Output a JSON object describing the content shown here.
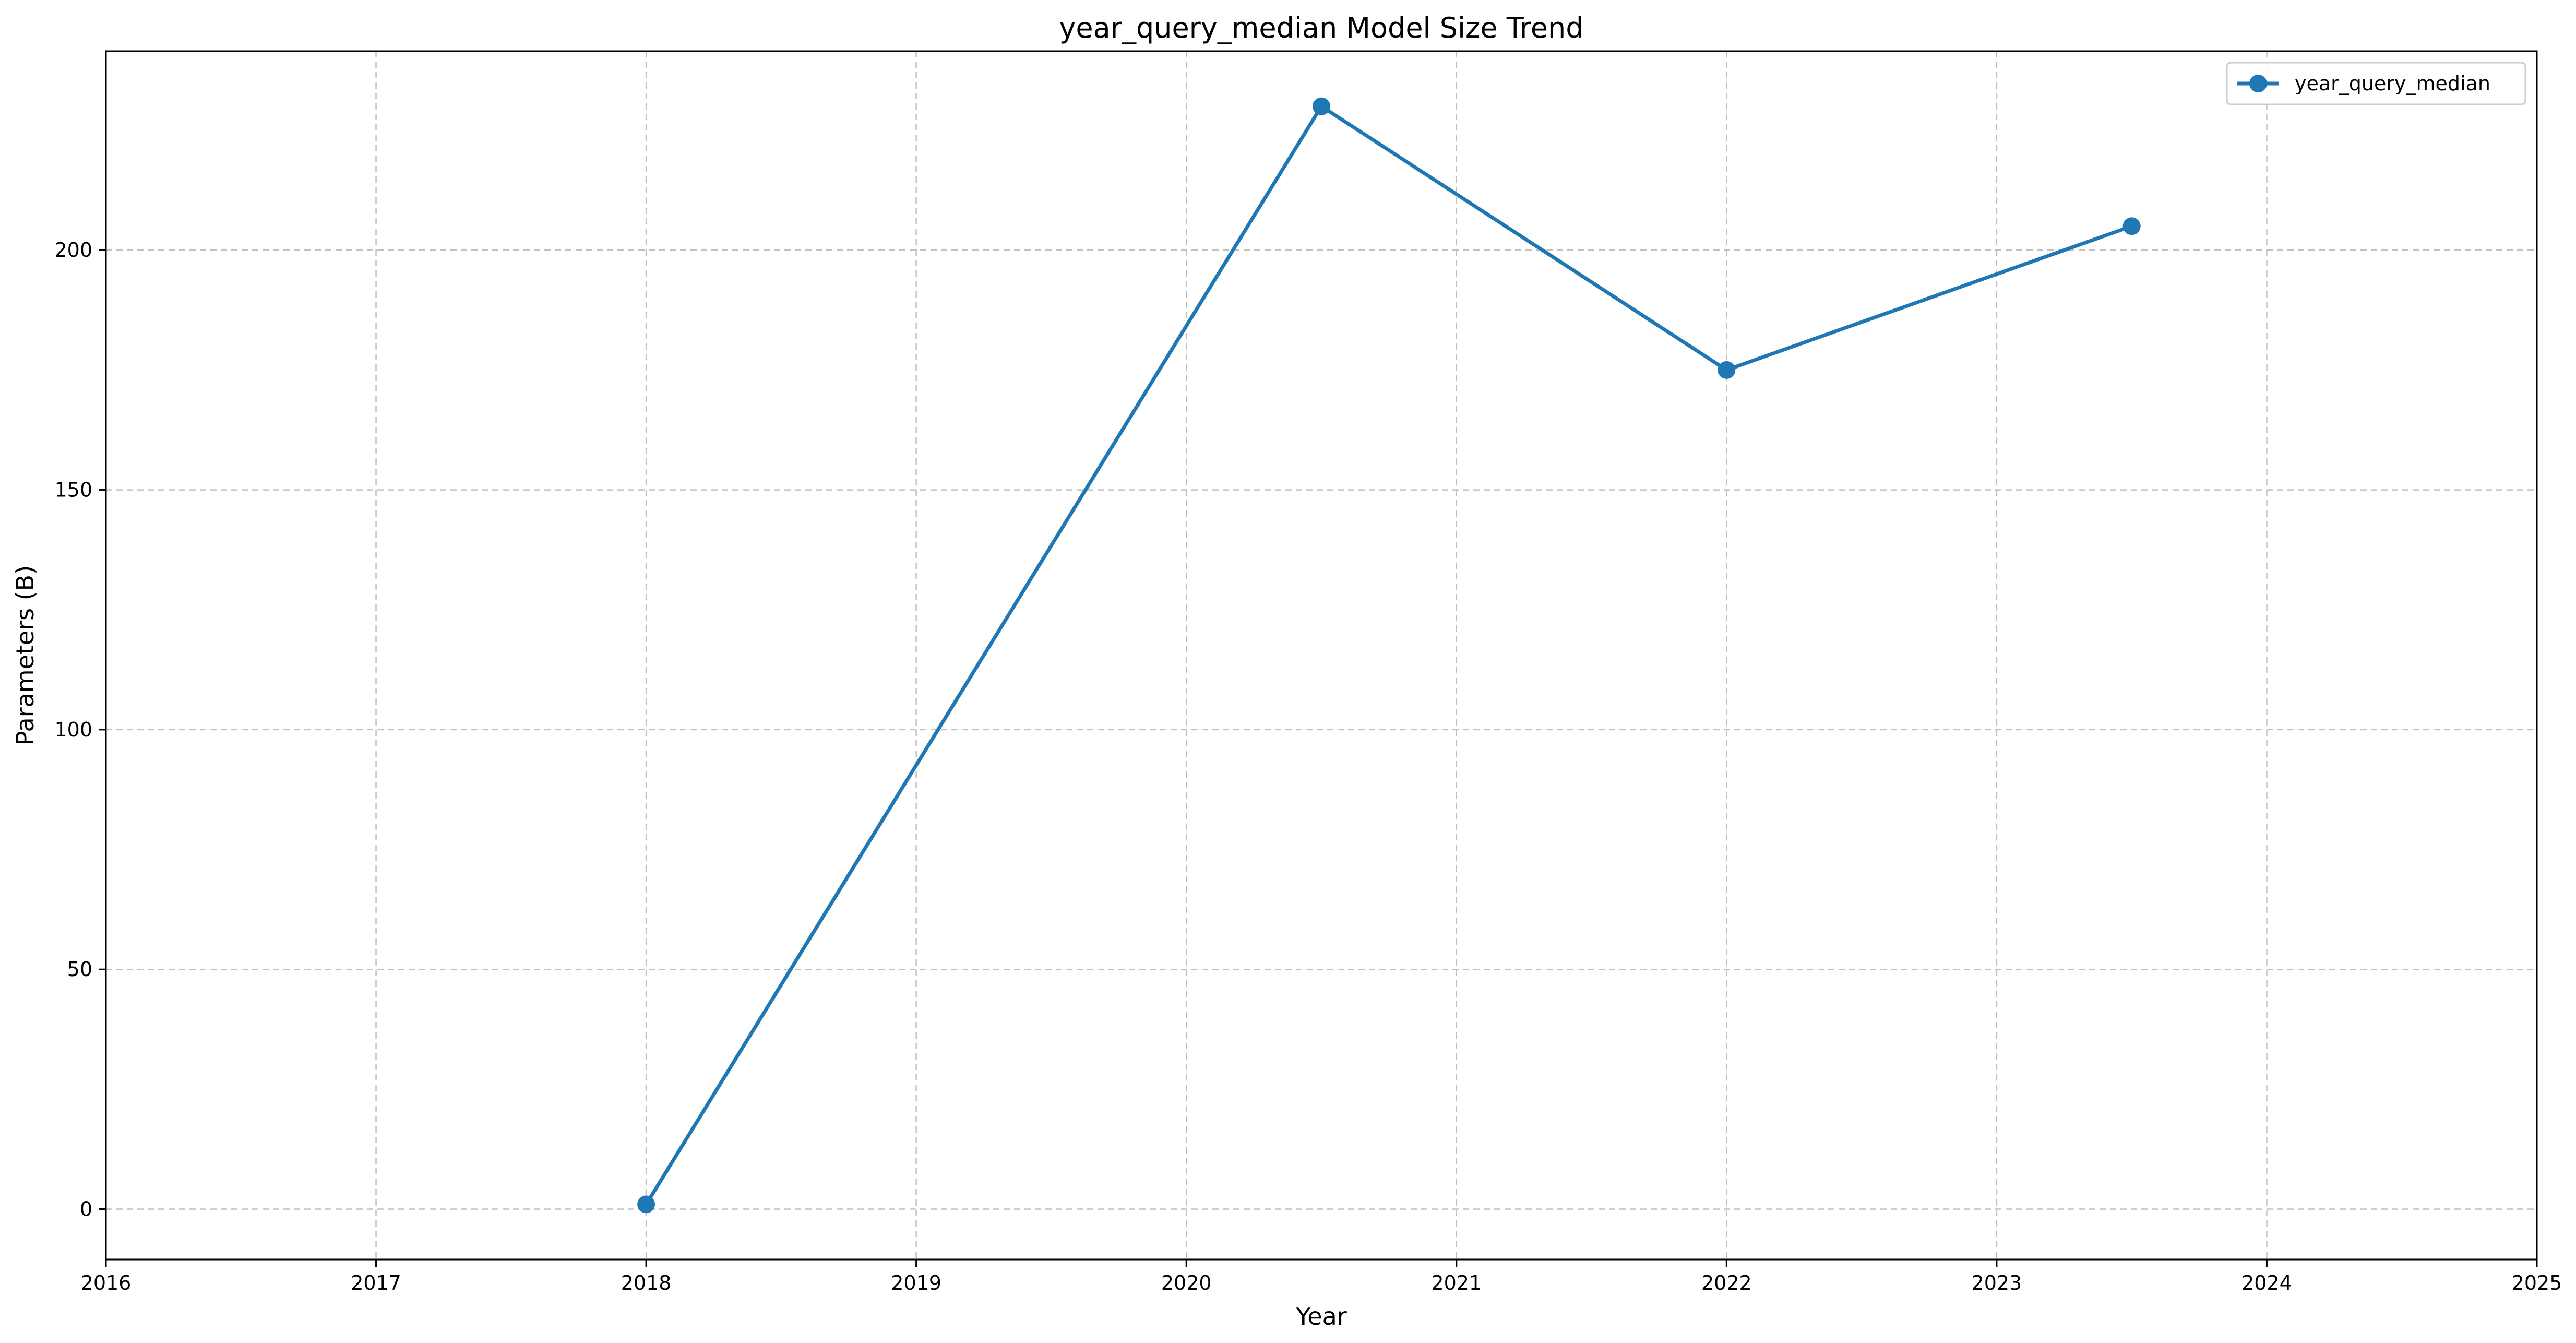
{
  "chart_data": {
    "type": "line",
    "title": "year_query_median Model Size Trend",
    "xlabel": "Year",
    "ylabel": "Parameters (B)",
    "xlim": [
      2016,
      2025
    ],
    "ylim": [
      -10.5,
      241.5
    ],
    "x_ticks": [
      2016,
      2017,
      2018,
      2019,
      2020,
      2021,
      2022,
      2023,
      2024,
      2025
    ],
    "y_ticks": [
      0,
      50,
      100,
      150,
      200
    ],
    "grid": true,
    "legend_position": "top-right",
    "series": [
      {
        "name": "year_query_median",
        "color": "#1f77b4",
        "marker": "circle",
        "x": [
          2018,
          2020.5,
          2022,
          2023.5
        ],
        "y": [
          1,
          230,
          175,
          205
        ]
      }
    ]
  }
}
